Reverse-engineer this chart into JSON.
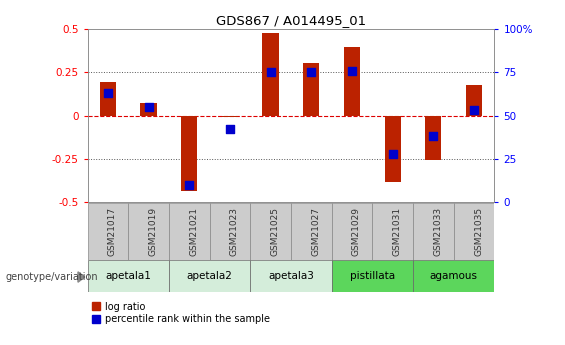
{
  "title": "GDS867 / A014495_01",
  "samples": [
    "GSM21017",
    "GSM21019",
    "GSM21021",
    "GSM21023",
    "GSM21025",
    "GSM21027",
    "GSM21029",
    "GSM21031",
    "GSM21033",
    "GSM21035"
  ],
  "log_ratios": [
    0.195,
    0.07,
    -0.44,
    -0.01,
    0.48,
    0.305,
    0.4,
    -0.385,
    -0.26,
    0.175
  ],
  "percentile_ranks": [
    63,
    55,
    10,
    42,
    75,
    75,
    76,
    28,
    38,
    53
  ],
  "groups": [
    {
      "name": "apetala1",
      "indices": [
        0,
        1
      ],
      "color": "#d4edda"
    },
    {
      "name": "apetala2",
      "indices": [
        2,
        3
      ],
      "color": "#d4edda"
    },
    {
      "name": "apetala3",
      "indices": [
        4,
        5
      ],
      "color": "#d4edda"
    },
    {
      "name": "pistillata",
      "indices": [
        6,
        7
      ],
      "color": "#5cd65c"
    },
    {
      "name": "agamous",
      "indices": [
        8,
        9
      ],
      "color": "#5cd65c"
    }
  ],
  "ylim_left": [
    -0.5,
    0.5
  ],
  "ylim_right": [
    0,
    100
  ],
  "yticks_left": [
    -0.5,
    -0.25,
    0.0,
    0.25,
    0.5
  ],
  "ytick_labels_left": [
    "-0.5",
    "-0.25",
    "0",
    "0.25",
    "0.5"
  ],
  "yticks_right": [
    0,
    25,
    50,
    75,
    100
  ],
  "ytick_labels_right": [
    "0",
    "25",
    "50",
    "75",
    "100%"
  ],
  "bar_color": "#bb2200",
  "dot_color": "#0000cc",
  "hline_color": "#dd0000",
  "dotted_line_color": "#555555",
  "bar_width": 0.4,
  "dot_size": 30,
  "group_label": "genotype/variation",
  "sample_box_color": "#cccccc",
  "legend_items": [
    {
      "label": "log ratio",
      "color": "#bb2200"
    },
    {
      "label": "percentile rank within the sample",
      "color": "#0000cc"
    }
  ]
}
